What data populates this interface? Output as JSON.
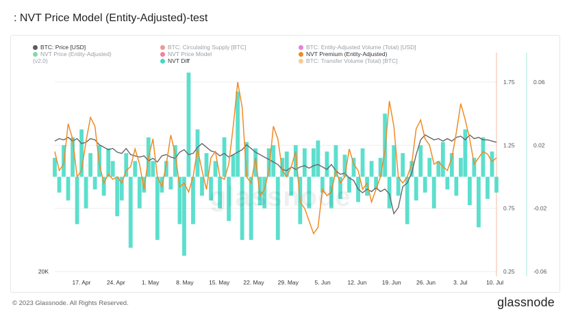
{
  "title": ": NVT Price Model (Entity-Adjusted)-test",
  "legend": [
    {
      "label": "BTC: Price [USD]",
      "color": "#5b5b5b",
      "faded": false
    },
    {
      "label": "BTC: Circulating Supply [BTC]",
      "color": "#e8462f",
      "faded": true
    },
    {
      "label": "BTC: Entity-Adjusted Volume (Total) [USD]",
      "color": "#d11bbd",
      "faded": true
    },
    {
      "label": "NVT Price (Entity-Adjusted)",
      "color": "#25b46c",
      "faded": true
    },
    {
      "label": "NVT Price Model",
      "color": "#e61c4d",
      "faded": true
    },
    {
      "label": "NVT Premium (Entity-Adjusted)",
      "color": "#f08a24",
      "faded": false
    },
    {
      "label": "NVT Diff",
      "color": "#3fd9c4",
      "faded": false
    },
    {
      "label": "BTC: Transfer Volume (Total) [BTC]",
      "color": "#f0a040",
      "faded": true
    }
  ],
  "legend_extra": "(v2.0)",
  "watermark": "glassnode",
  "footer": {
    "copyright": "© 2023 Glassnode. All Rights Reserved.",
    "brand": "glassnode"
  },
  "chart_data": {
    "type": "line",
    "x_ticks": [
      "17. Apr",
      "24. Apr",
      "1. May",
      "8. May",
      "15. May",
      "22. May",
      "29. May",
      "5. Jun",
      "12. Jun",
      "19. Jun",
      "26. Jun",
      "3. Jul",
      "10. Jul"
    ],
    "left_axis": {
      "ticks": [
        "20K"
      ]
    },
    "right_axis_1": {
      "ticks": [
        "1.75",
        "1.25",
        "0.75",
        "0.25"
      ],
      "range": [
        0.25,
        1.95
      ],
      "color": "#f08a24"
    },
    "right_axis_2": {
      "ticks": [
        "0.06",
        "0.02",
        "-0.02",
        "-0.06"
      ],
      "range": [
        -0.06,
        0.08
      ],
      "color": "#3fd9c4"
    },
    "series": [
      {
        "name": "BTC: Price [USD]",
        "axis": "price",
        "color": "#666666",
        "values": [
          0.29,
          0.31,
          0.3,
          0.32,
          0.29,
          0.31,
          0.27,
          0.28,
          0.31,
          0.3,
          0.26,
          0.24,
          0.22,
          0.23,
          0.2,
          0.19,
          0.23,
          0.18,
          0.17,
          0.16,
          0.17,
          0.13,
          0.15,
          0.12,
          0.17,
          0.18,
          0.16,
          0.15,
          0.2,
          0.22,
          0.18,
          0.19,
          0.24,
          0.27,
          0.24,
          0.21,
          0.2,
          0.17,
          0.19,
          0.16,
          0.18,
          0.2,
          0.22,
          0.26,
          0.23,
          0.2,
          0.18,
          0.16,
          0.14,
          0.12,
          0.1,
          0.06,
          0.05,
          0.08,
          0.06,
          0.08,
          0.09,
          0.07,
          0.09,
          0.1,
          0.08,
          0.06,
          0.1,
          0.05,
          0.02,
          0.03,
          -0.01,
          -0.03,
          -0.1,
          -0.13,
          -0.1,
          -0.12,
          -0.09,
          -0.12,
          -0.1,
          -0.14,
          -0.3,
          -0.25,
          -0.08,
          -0.05,
          0.03,
          0.18,
          0.3,
          0.34,
          0.32,
          0.3,
          0.31,
          0.29,
          0.31,
          0.29,
          0.32,
          0.33,
          0.3,
          0.34,
          0.31,
          0.32,
          0.3,
          0.3,
          0.29,
          0.28
        ]
      },
      {
        "name": "NVT Premium (Entity-Adjusted)",
        "axis": "premium",
        "color": "#f08a24",
        "values": [
          1.2,
          1.05,
          1.1,
          1.42,
          1.3,
          1.0,
          1.05,
          1.28,
          1.47,
          1.4,
          1.1,
          0.95,
          1.02,
          0.98,
          1.0,
          0.95,
          1.05,
          1.08,
          1.22,
          1.1,
          0.9,
          1.15,
          1.3,
          1.0,
          0.92,
          1.1,
          1.33,
          1.18,
          0.92,
          0.95,
          0.88,
          1.0,
          1.22,
          1.05,
          0.9,
          1.15,
          1.2,
          1.0,
          0.98,
          1.1,
          1.4,
          1.75,
          1.55,
          1.0,
          0.95,
          1.15,
          0.85,
          0.9,
          1.05,
          1.4,
          1.3,
          1.05,
          1.0,
          1.08,
          1.2,
          0.8,
          0.75,
          0.65,
          0.55,
          0.6,
          0.9,
          0.85,
          0.88,
          1.05,
          0.95,
          1.0,
          1.22,
          1.1,
          1.05,
          0.9,
          0.95,
          0.8,
          0.9,
          1.0,
          1.2,
          1.6,
          1.4,
          1.0,
          0.95,
          1.0,
          1.1,
          1.38,
          1.45,
          1.3,
          1.25,
          1.1,
          1.12,
          1.08,
          1.05,
          1.15,
          1.35,
          1.58,
          1.45,
          1.3,
          1.1,
          1.15,
          1.2,
          1.18,
          1.12,
          1.15
        ]
      },
      {
        "name": "NVT Diff",
        "axis": "diff",
        "color": "#3fd9c4",
        "values": [
          0.012,
          -0.01,
          0.02,
          -0.015,
          0.025,
          -0.03,
          0.03,
          -0.02,
          0.015,
          -0.008,
          0.02,
          -0.012,
          0.018,
          0.01,
          -0.025,
          -0.015,
          0.015,
          -0.045,
          0.01,
          -0.02,
          -0.01,
          0.025,
          0.01,
          -0.04,
          -0.01,
          0.01,
          -0.008,
          0.02,
          -0.03,
          -0.05,
          0.066,
          -0.03,
          0.03,
          -0.012,
          0.015,
          -0.015,
          0.01,
          -0.02,
          0.025,
          -0.028,
          0.014,
          0.054,
          -0.04,
          0.022,
          -0.04,
          0.018,
          -0.018,
          -0.02,
          0.018,
          0.02,
          -0.04,
          0.012,
          0.016,
          -0.012,
          0.02,
          -0.03,
          0.018,
          -0.02,
          0.018,
          0.023,
          -0.01,
          0.016,
          -0.02,
          0.02,
          -0.014,
          0.014,
          -0.01,
          0.012,
          -0.016,
          0.018,
          -0.012,
          0.01,
          -0.008,
          0.012,
          0.04,
          -0.02,
          0.02,
          -0.012,
          0.015,
          -0.03,
          0.01,
          -0.015,
          0.02,
          -0.01,
          0.012,
          -0.02,
          0.01,
          0.022,
          -0.008,
          0.015,
          -0.012,
          0.012,
          0.03,
          -0.018,
          0.012,
          -0.032,
          0.025,
          -0.014,
          0.016,
          -0.01
        ]
      }
    ]
  }
}
